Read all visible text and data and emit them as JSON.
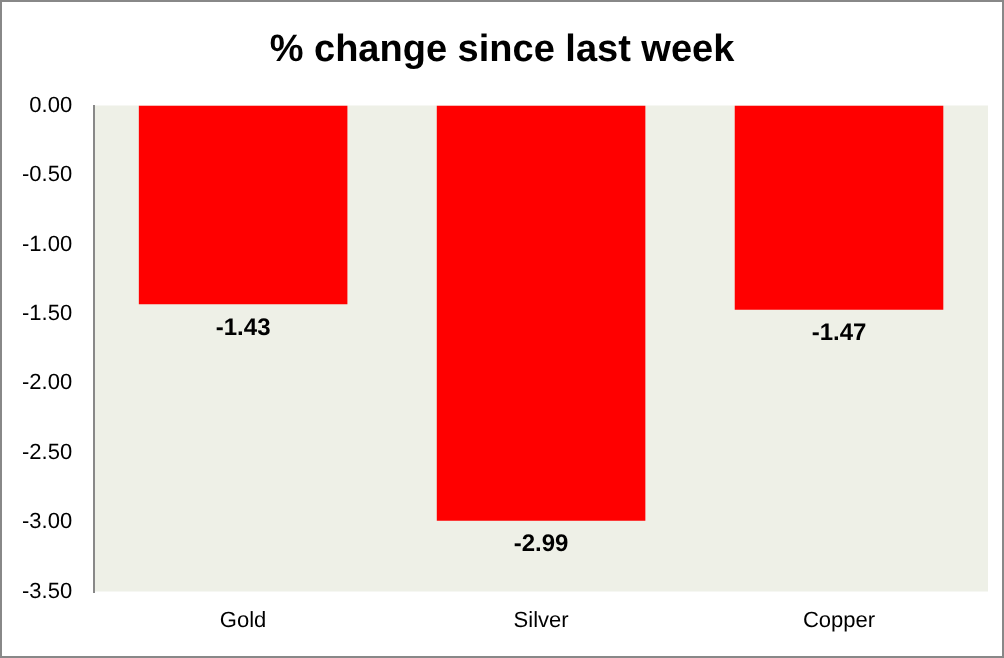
{
  "chart_data": {
    "type": "bar",
    "title": "% change since last week",
    "categories": [
      "Gold",
      "Silver",
      "Copper"
    ],
    "values": [
      -1.43,
      -2.99,
      -1.47
    ],
    "color": "#ff0000",
    "ylim": [
      -3.5,
      0
    ],
    "yticks": [
      {
        "value": 0,
        "label": "0.00"
      },
      {
        "value": -0.5,
        "label": "-0.50"
      },
      {
        "value": -1,
        "label": "-1.00"
      },
      {
        "value": -1.5,
        "label": "-1.50"
      },
      {
        "value": -2,
        "label": "-2.00"
      },
      {
        "value": -2.5,
        "label": "-2.50"
      },
      {
        "value": -3,
        "label": "-3.00"
      },
      {
        "value": -3.5,
        "label": "-3.50"
      }
    ],
    "grid": false,
    "data_labels": true
  }
}
